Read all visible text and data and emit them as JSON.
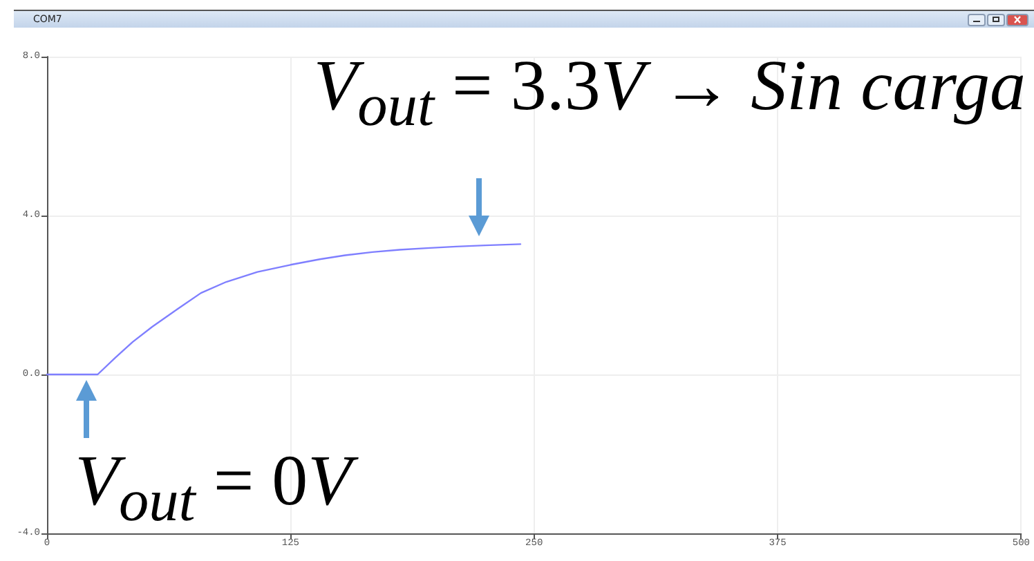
{
  "chart_data": {
    "type": "line",
    "title": "COM7",
    "x": [
      0,
      26,
      35,
      44,
      54,
      65,
      79,
      92,
      108,
      125,
      140,
      153,
      167,
      181,
      195,
      210,
      225,
      243
    ],
    "series": [
      {
        "color": "#7f7fff",
        "values": [
          0,
          0,
          0.42,
          0.82,
          1.2,
          1.58,
          2.05,
          2.33,
          2.58,
          2.76,
          2.9,
          3.0,
          3.08,
          3.14,
          3.18,
          3.22,
          3.25,
          3.28
        ]
      }
    ],
    "xlim": [
      0,
      500
    ],
    "xticks": [
      0,
      125,
      250,
      375,
      500
    ],
    "ylim": [
      -4,
      8
    ],
    "yticks": [
      {
        "value": -4,
        "label": "-4.0"
      },
      {
        "value": 0,
        "label": "0.0"
      },
      {
        "value": 4,
        "label": "4.0"
      },
      {
        "value": 8,
        "label": "8.0"
      }
    ],
    "grid": true,
    "marker": "none",
    "line_style": "solid",
    "annotations": [
      {
        "text": "V$_{out}$ = 3.3V → Sin carga",
        "x": 222,
        "y": 3.25
      },
      {
        "text": "V$_{out}$ = 0V",
        "x": 20,
        "y": 0
      }
    ]
  }
}
